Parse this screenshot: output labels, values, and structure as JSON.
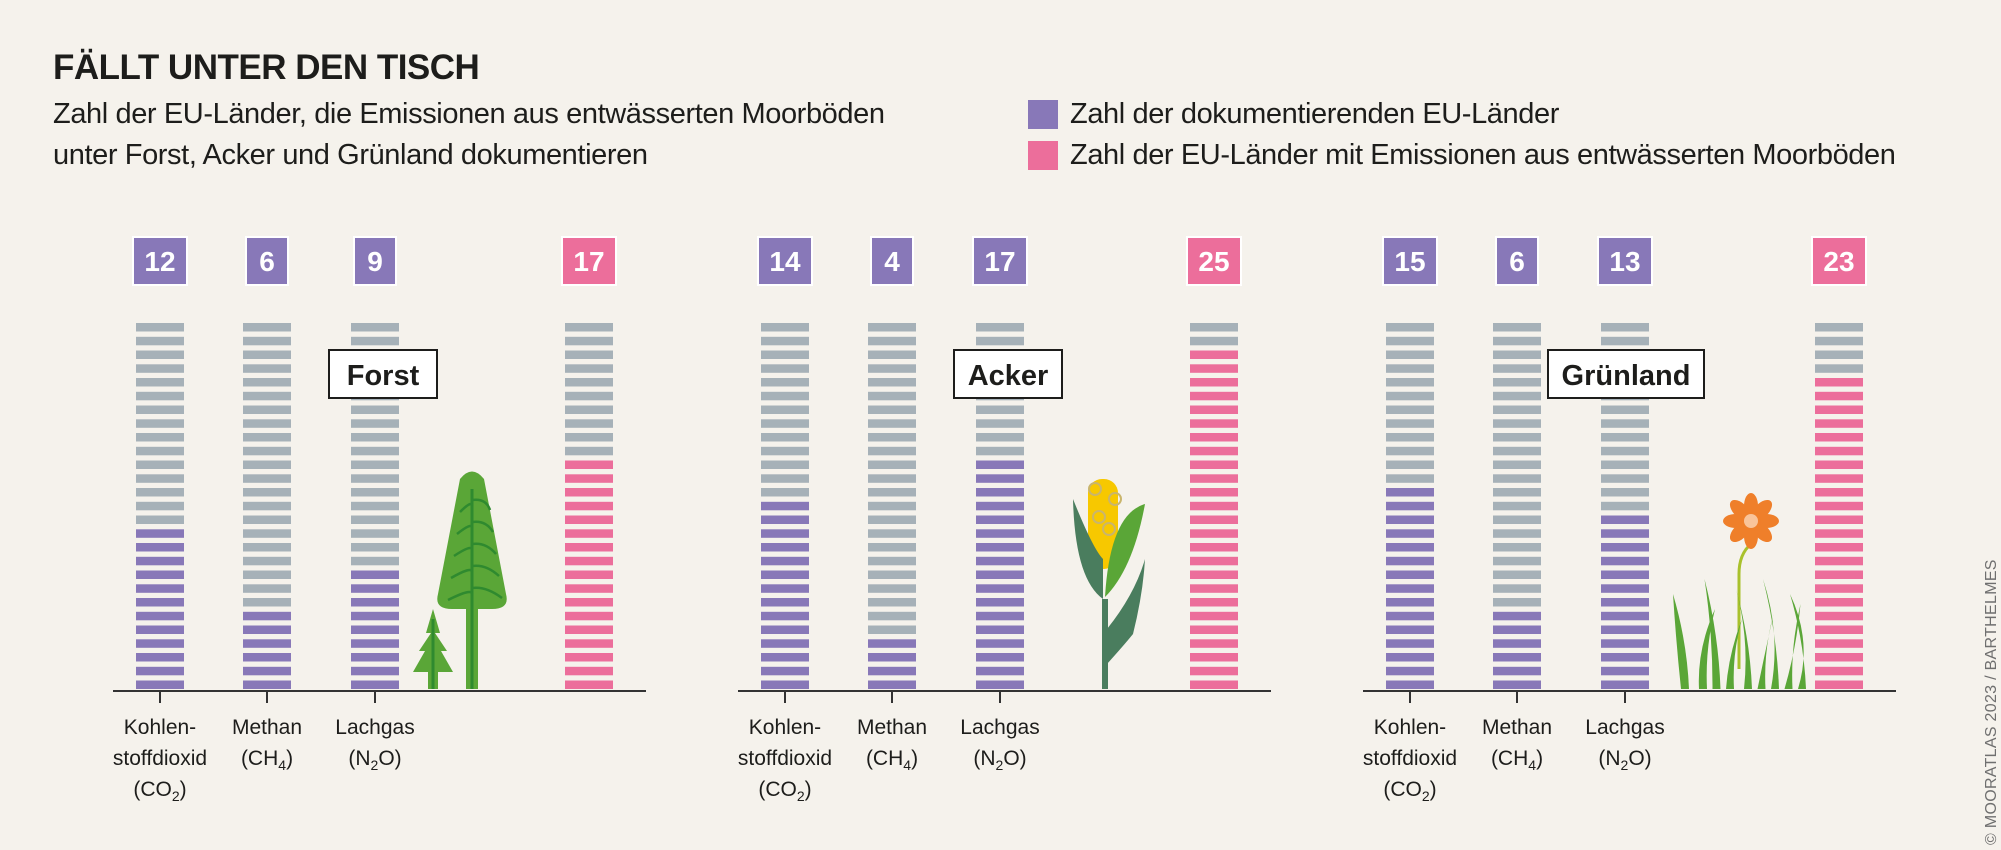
{
  "header": {
    "title": "FÄLLT UNTER DEN TISCH",
    "subtitle_line1": "Zahl der EU-Länder, die Emissionen aus entwässerten Moorböden",
    "subtitle_line2": "unter Forst, Acker und Grünland dokumentieren"
  },
  "legend": [
    {
      "label": "Zahl der dokumentierenden EU-Länder",
      "color": "#8878b8"
    },
    {
      "label": "Zahl der EU-Länder mit Emissionen aus entwässerten Moorböden",
      "color": "#ec6e9b"
    }
  ],
  "credit": "© MOORATLAS 2023 / BARTHELMES",
  "colors": {
    "documenting": "#8878b8",
    "emitting": "#ec6e9b",
    "empty": "#a6b1b8",
    "axis": "#333333"
  },
  "chart_data": {
    "type": "bar",
    "title": "FÄLLT UNTER DEN TISCH",
    "subtitle": "Zahl der EU-Länder, die Emissionen aus entwässerten Moorböden unter Forst, Acker und Grünland dokumentieren",
    "unit_total": 27,
    "ylim": [
      0,
      27
    ],
    "grid": false,
    "legend_position": "top-right",
    "categories": [
      {
        "line1": "Kohlen-",
        "line2": "stoffdioxid",
        "line3": "(CO",
        "sub": "2",
        "tail": ")"
      },
      {
        "line1": "Methan",
        "line2": "(CH",
        "sub": "4",
        "tail": ")"
      },
      {
        "line1": "Lachgas",
        "line2": "(N",
        "sub": "2",
        "tail": "O)"
      }
    ],
    "panels": [
      {
        "name": "Forst",
        "illustration": "trees",
        "documenting": [
          12,
          6,
          9
        ],
        "emitting": 17
      },
      {
        "name": "Acker",
        "illustration": "corn",
        "documenting": [
          14,
          4,
          17
        ],
        "emitting": 25
      },
      {
        "name": "Grünland",
        "illustration": "flower-grass",
        "documenting": [
          15,
          6,
          13
        ],
        "emitting": 23
      }
    ],
    "series": [
      {
        "name": "Zahl der dokumentierenden EU-Länder – Kohlenstoffdioxid (CO2)",
        "values": [
          12,
          14,
          15
        ]
      },
      {
        "name": "Zahl der dokumentierenden EU-Länder – Methan (CH4)",
        "values": [
          6,
          4,
          6
        ]
      },
      {
        "name": "Zahl der dokumentierenden EU-Länder – Lachgas (N2O)",
        "values": [
          9,
          17,
          13
        ]
      },
      {
        "name": "Zahl der EU-Länder mit Emissionen aus entwässerten Moorböden",
        "values": [
          17,
          25,
          23
        ]
      }
    ]
  }
}
